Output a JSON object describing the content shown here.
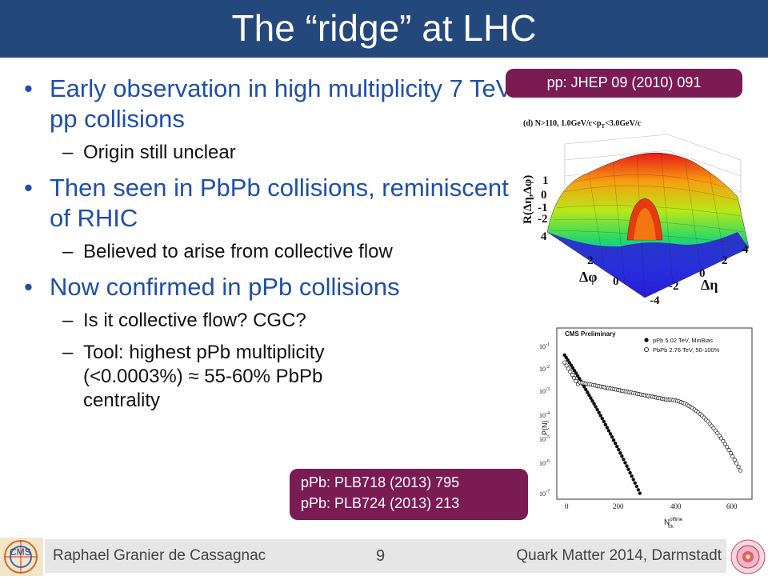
{
  "slide": {
    "title": "The “ridge” at LHC",
    "bullets": [
      {
        "text": "Early observation in high multiplicity 7 TeV pp collisions",
        "subs": [
          "Origin still unclear"
        ]
      },
      {
        "text": "Then seen in PbPb collisions, reminiscent of RHIC",
        "subs": [
          "Believed to arise from collective flow"
        ]
      },
      {
        "text": "Now confirmed in pPb collisions",
        "subs": [
          "Is it collective flow? CGC?",
          "Tool: highest pPb multiplicity (<0.0003%) ≈ 55-60% PbPb centrality"
        ]
      }
    ],
    "ref_pp": "pp: JHEP 09 (2010) 091",
    "ref_ppb_1": "pPb: PLB718 (2013) 795",
    "ref_ppb_2": "pPb: PLB724 (2013) 213"
  },
  "plot_ridge": {
    "caption": "(d) N>110, 1.0GeV/c<p",
    "caption_sub": "T",
    "caption_end": "<3.0GeV/c",
    "zlabel": "R(Δη,Δφ)",
    "z_ticks": [
      "1",
      "0",
      "-1",
      "-2"
    ],
    "phi_label": "Δφ",
    "eta_label": "Δη",
    "phi_ticks": [
      "4",
      "2",
      "0"
    ],
    "eta_ticks": [
      "4",
      "2",
      "0",
      "-2",
      "-4"
    ]
  },
  "plot_mult": {
    "title": "CMS Preliminary",
    "legend": [
      "pPb 5.02 TeV, MinBias",
      "PbPb 2.76 TeV, 50-100%"
    ],
    "ylabel": "P(N)",
    "xlabel": "N",
    "xlabel_sup": "offline",
    "xlabel_sub": "trk",
    "y_ticks": [
      "10",
      "10",
      "10",
      "10",
      "10",
      "10",
      "10"
    ],
    "y_exps": [
      "-1",
      "-2",
      "-3",
      "-4",
      "-5",
      "-6",
      "-7"
    ],
    "x_ticks": [
      "0",
      "200",
      "400",
      "600"
    ]
  },
  "footer": {
    "author": "Raphael Granier de Cassagnac",
    "page": "9",
    "conference": "Quark Matter 2014, Darmstadt",
    "logo_text": "CMS"
  },
  "colors": {
    "title_bar": "#25487c",
    "bullet_text": "#1f4fa8",
    "ref_box": "#7a1b54"
  }
}
